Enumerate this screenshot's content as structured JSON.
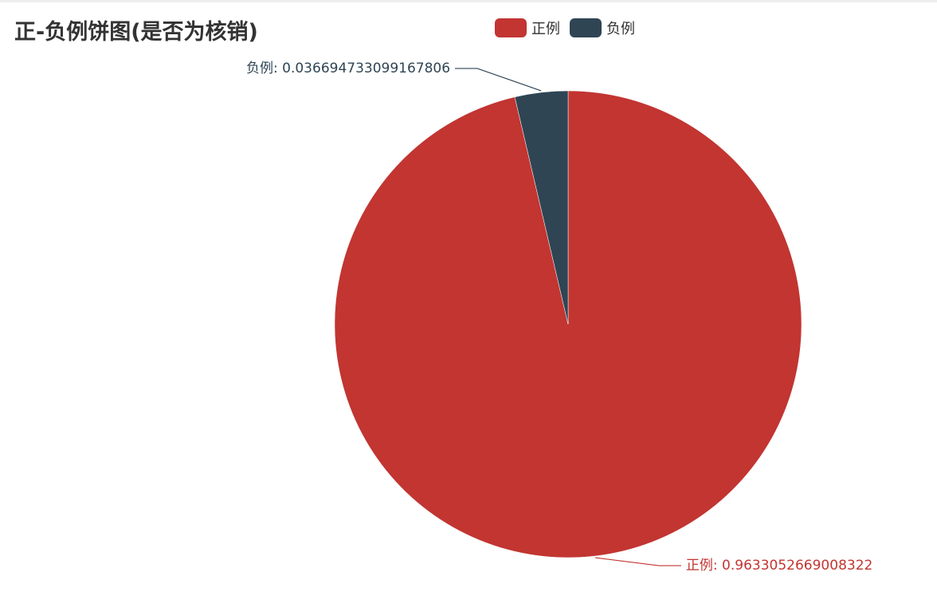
{
  "chart_data": {
    "type": "pie",
    "title": "正-负例饼图(是否为核销)",
    "legend_placement": "top-center",
    "slices": [
      {
        "name": "正例",
        "value": 0.9633052669008322,
        "label": "正例: 0.9633052669008322",
        "color": "#c23531"
      },
      {
        "name": "负例",
        "value": 0.036694733099167806,
        "label": "负例: 0.036694733099167806",
        "color": "#2f4554"
      }
    ]
  }
}
